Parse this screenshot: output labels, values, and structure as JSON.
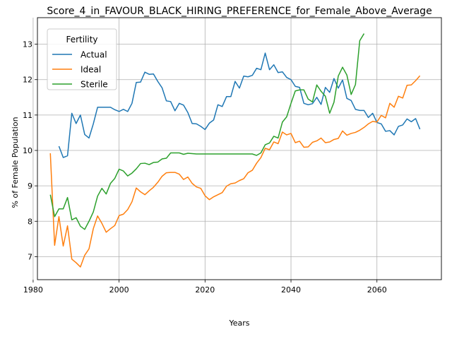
{
  "chart_data": {
    "type": "line",
    "title": "Score_4_in_FAVOUR_BLACK_HIRING_PREFERENCE_for_Female_Above_Average",
    "xlabel": "Years",
    "ylabel": "% of Female Population",
    "xlim": [
      1981,
      2075
    ],
    "ylim": [
      6.35,
      13.75
    ],
    "xticks": [
      1980,
      2000,
      2020,
      2040,
      2060
    ],
    "yticks": [
      7,
      8,
      9,
      10,
      11,
      12,
      13
    ],
    "grid": true,
    "legend": {
      "title": "Fertility",
      "placement": "top-left"
    },
    "series": [
      {
        "name": "Actual",
        "color": "#1f77b4",
        "x": [
          1986,
          1987,
          1988,
          1989,
          1990,
          1991,
          1992,
          1993,
          1994,
          1995,
          1996,
          1997,
          1998,
          1999,
          2000,
          2001,
          2002,
          2003,
          2004,
          2005,
          2006,
          2007,
          2008,
          2009,
          2010,
          2011,
          2012,
          2013,
          2014,
          2015,
          2016,
          2017,
          2018,
          2019,
          2020,
          2021,
          2022,
          2023,
          2024,
          2025,
          2026,
          2027,
          2028,
          2029,
          2030,
          2031,
          2032,
          2033,
          2034,
          2035,
          2036,
          2037,
          2038,
          2039,
          2040,
          2041,
          2042,
          2043,
          2044,
          2045,
          2046,
          2047,
          2048,
          2049,
          2050,
          2051,
          2052,
          2053,
          2054,
          2055,
          2056,
          2057,
          2058,
          2059,
          2060,
          2061,
          2062,
          2063,
          2064,
          2065,
          2066,
          2067,
          2068,
          2069,
          2070
        ],
        "values": [
          10.12,
          9.8,
          9.85,
          11.05,
          10.76,
          11.0,
          10.45,
          10.35,
          10.75,
          11.22,
          11.22,
          11.22,
          11.22,
          11.15,
          11.1,
          11.16,
          11.1,
          11.33,
          11.92,
          11.93,
          12.21,
          12.15,
          12.16,
          11.95,
          11.77,
          11.4,
          11.38,
          11.12,
          11.33,
          11.28,
          11.07,
          10.76,
          10.75,
          10.68,
          10.59,
          10.77,
          10.86,
          11.29,
          11.24,
          11.52,
          11.52,
          11.95,
          11.76,
          12.1,
          12.08,
          12.12,
          12.32,
          12.28,
          12.75,
          12.28,
          12.42,
          12.2,
          12.22,
          12.06,
          12.0,
          11.81,
          11.78,
          11.33,
          11.29,
          11.32,
          11.5,
          11.3,
          11.78,
          11.64,
          12.03,
          11.76,
          11.99,
          11.47,
          11.41,
          11.16,
          11.13,
          11.13,
          10.93,
          11.05,
          10.79,
          10.75,
          10.54,
          10.56,
          10.44,
          10.68,
          10.72,
          10.89,
          10.81,
          10.9,
          10.6
        ]
      },
      {
        "name": "Ideal",
        "color": "#ff7f0e",
        "x": [
          1984,
          1985,
          1986,
          1987,
          1988,
          1989,
          1990,
          1991,
          1992,
          1993,
          1994,
          1995,
          1996,
          1997,
          1998,
          1999,
          2000,
          2001,
          2002,
          2003,
          2004,
          2005,
          2006,
          2007,
          2008,
          2009,
          2010,
          2011,
          2012,
          2013,
          2014,
          2015,
          2016,
          2017,
          2018,
          2019,
          2020,
          2021,
          2022,
          2023,
          2024,
          2025,
          2026,
          2027,
          2028,
          2029,
          2030,
          2031,
          2032,
          2033,
          2034,
          2035,
          2036,
          2037,
          2038,
          2039,
          2040,
          2041,
          2042,
          2043,
          2044,
          2045,
          2046,
          2047,
          2048,
          2049,
          2050,
          2051,
          2052,
          2053,
          2054,
          2055,
          2056,
          2057,
          2058,
          2059,
          2060,
          2061,
          2062,
          2063,
          2064,
          2065,
          2066,
          2067,
          2068,
          2069,
          2070
        ],
        "values": [
          9.92,
          7.32,
          8.13,
          7.3,
          7.87,
          6.93,
          6.83,
          6.71,
          7.04,
          7.22,
          7.79,
          8.15,
          7.94,
          7.69,
          7.79,
          7.88,
          8.16,
          8.2,
          8.33,
          8.55,
          8.94,
          8.83,
          8.75,
          8.86,
          8.96,
          9.1,
          9.27,
          9.37,
          9.38,
          9.38,
          9.33,
          9.18,
          9.25,
          9.07,
          8.97,
          8.93,
          8.72,
          8.61,
          8.69,
          8.75,
          8.81,
          8.99,
          9.06,
          9.08,
          9.15,
          9.2,
          9.37,
          9.44,
          9.64,
          9.8,
          10.06,
          10.02,
          10.24,
          10.19,
          10.52,
          10.44,
          10.48,
          10.22,
          10.26,
          10.09,
          10.1,
          10.23,
          10.27,
          10.35,
          10.22,
          10.24,
          10.31,
          10.34,
          10.55,
          10.43,
          10.48,
          10.51,
          10.57,
          10.65,
          10.75,
          10.82,
          10.8,
          10.99,
          10.92,
          11.33,
          11.22,
          11.53,
          11.48,
          11.84,
          11.85,
          11.97,
          12.11
        ]
      },
      {
        "name": "Sterile",
        "color": "#2ca02c",
        "x": [
          1984,
          1985,
          1986,
          1987,
          1988,
          1989,
          1990,
          1991,
          1992,
          1993,
          1994,
          1995,
          1996,
          1997,
          1998,
          1999,
          2000,
          2001,
          2002,
          2003,
          2004,
          2005,
          2006,
          2007,
          2008,
          2009,
          2010,
          2011,
          2012,
          2013,
          2014,
          2015,
          2016,
          2017,
          2018,
          2019,
          2020,
          2021,
          2022,
          2023,
          2024,
          2025,
          2026,
          2027,
          2028,
          2029,
          2030,
          2031,
          2032,
          2033,
          2034,
          2035,
          2036,
          2037,
          2038,
          2039,
          2040,
          2041,
          2042,
          2043,
          2044,
          2045,
          2046,
          2047,
          2048,
          2049,
          2050,
          2051,
          2052,
          2053,
          2054,
          2055,
          2056,
          2057
        ],
        "values": [
          8.75,
          8.13,
          8.35,
          8.35,
          8.67,
          8.04,
          8.1,
          7.86,
          7.77,
          8.0,
          8.26,
          8.71,
          8.93,
          8.77,
          9.07,
          9.21,
          9.47,
          9.42,
          9.28,
          9.36,
          9.48,
          9.63,
          9.64,
          9.6,
          9.66,
          9.67,
          9.76,
          9.78,
          9.93,
          9.93,
          9.93,
          9.89,
          9.92,
          9.91,
          9.9,
          9.9,
          9.9,
          9.9,
          9.9,
          9.9,
          9.9,
          9.9,
          9.9,
          9.9,
          9.9,
          9.9,
          9.9,
          9.9,
          9.86,
          9.93,
          10.16,
          10.21,
          10.4,
          10.35,
          10.8,
          10.95,
          11.33,
          11.68,
          11.71,
          11.71,
          11.45,
          11.37,
          11.85,
          11.67,
          11.53,
          11.05,
          11.36,
          12.1,
          12.35,
          12.13,
          11.58,
          11.86,
          13.1,
          13.3
        ]
      }
    ]
  }
}
